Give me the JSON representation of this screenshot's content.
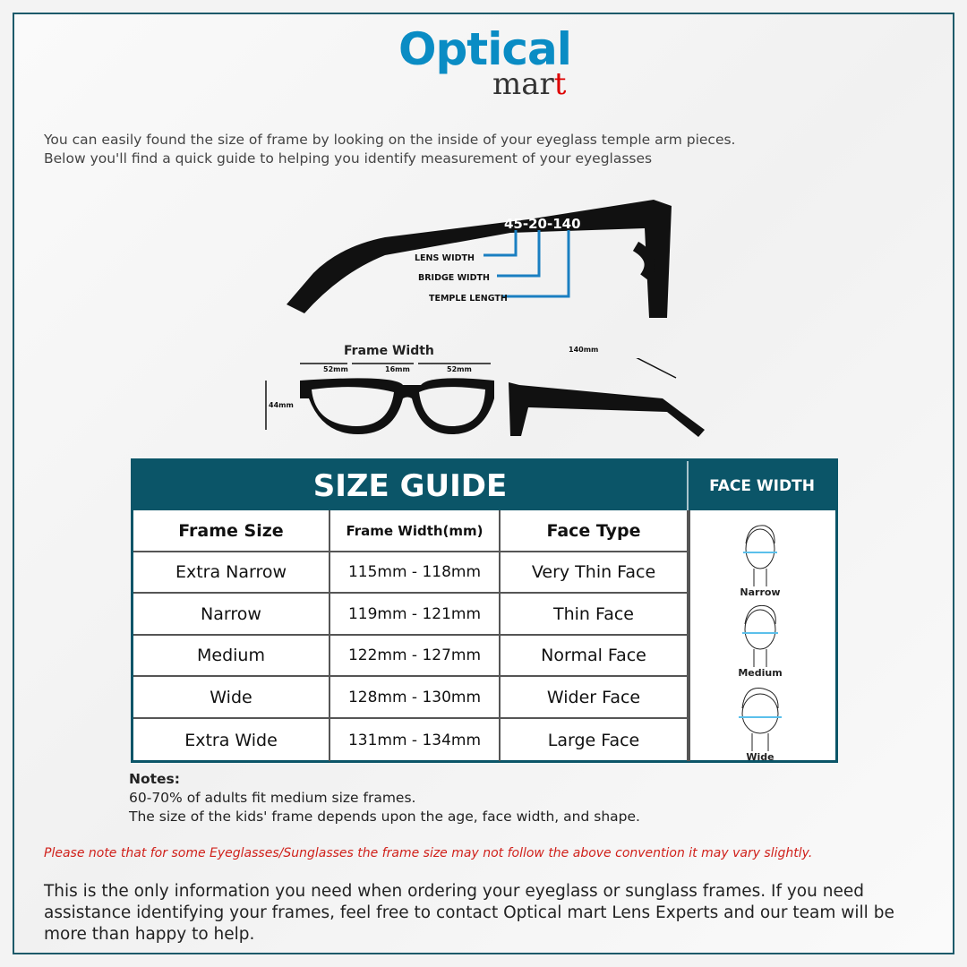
{
  "logo": {
    "line1": "Optical",
    "line2_main": "mar",
    "line2_accent": "t"
  },
  "intro": [
    "You can easily found the size of frame by looking on the inside of your eyeglass temple arm pieces.",
    "Below you'll find a quick guide to helping you identify measurement of your eyeglasses"
  ],
  "temple_diagram": {
    "code": "45-20-140",
    "labels": [
      "LENS WIDTH",
      "BRIDGE WIDTH",
      "TEMPLE LENGTH"
    ]
  },
  "front_diagram": {
    "title": "Frame Width",
    "lens": "52mm",
    "bridge": "16mm",
    "lens2": "52mm",
    "height": "44mm",
    "temple": "140mm"
  },
  "table": {
    "title": "SIZE GUIDE",
    "face_title": "FACE WIDTH",
    "headers": [
      "Frame Size",
      "Frame Width(mm)",
      "Face Type"
    ],
    "rows": [
      [
        "Extra Narrow",
        "115mm - 118mm",
        "Very Thin Face"
      ],
      [
        "Narrow",
        "119mm - 121mm",
        "Thin Face"
      ],
      [
        "Medium",
        "122mm - 127mm",
        "Normal Face"
      ],
      [
        "Wide",
        "128mm - 130mm",
        "Wider Face"
      ],
      [
        "Extra Wide",
        "131mm - 134mm",
        "Large Face"
      ]
    ],
    "faces": [
      "Narrow",
      "Medium",
      "Wide"
    ]
  },
  "notes": {
    "title": "Notes:",
    "lines": [
      "60-70% of adults fit medium size frames.",
      "The size of the kids' frame depends upon the age, face width, and shape."
    ]
  },
  "disclaimer": "Please note that for some Eyeglasses/Sunglasses the frame size may not follow the above convention it may vary slightly.",
  "outro": "This is the only information you need when ordering your eyeglass or sunglass frames. If you need assistance identifying your frames, feel free to contact Optical mart Lens Experts and our team will be more than happy to help.",
  "colors": {
    "teal": "#0b5568",
    "logo_blue": "#0a8cc4",
    "red": "#d0201a"
  }
}
